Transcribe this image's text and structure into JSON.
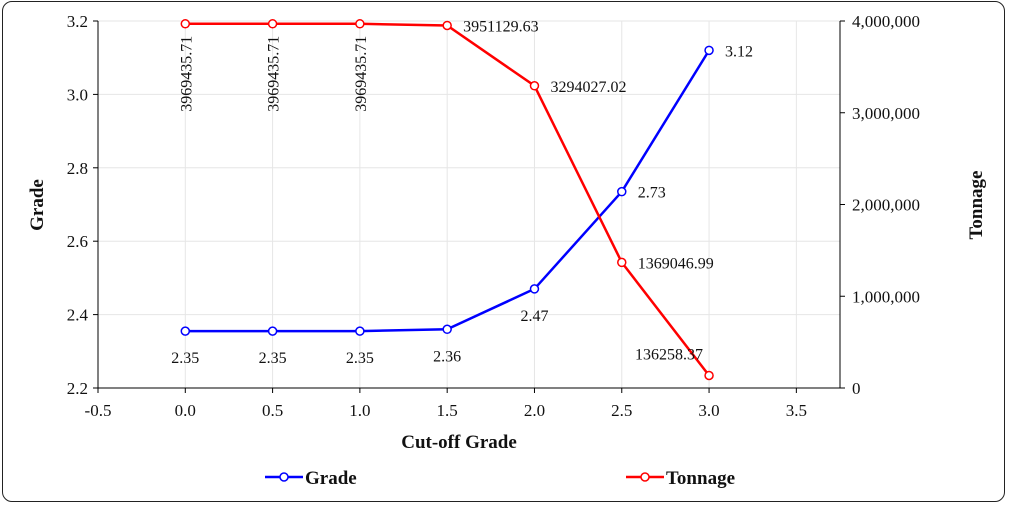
{
  "chart_data": {
    "type": "line",
    "xlabel": "Cut-off Grade",
    "ylabel": "Grade",
    "y2label": "Tonnage",
    "xlim": [
      -0.5,
      3.75
    ],
    "ylim": [
      2.2,
      3.2
    ],
    "y2lim": [
      0,
      4000000
    ],
    "x_ticks": [
      "-0.5",
      "0.0",
      "0.5",
      "1.0",
      "1.5",
      "2.0",
      "2.5",
      "3.0",
      "3.5"
    ],
    "y_ticks": [
      "2.2",
      "2.4",
      "2.6",
      "2.8",
      "3.0",
      "3.2"
    ],
    "y2_ticks": [
      "0",
      "1,000,000",
      "2,000,000",
      "3,000,000",
      "4,000,000"
    ],
    "grid": true,
    "legend_position": "bottom",
    "x": [
      0.0,
      0.5,
      1.0,
      1.5,
      2.0,
      2.5,
      3.0
    ],
    "series": [
      {
        "name": "Grade",
        "axis": "left",
        "color": "#0000ff",
        "values": [
          2.355,
          2.355,
          2.355,
          2.36,
          2.47,
          2.735,
          3.12
        ],
        "labels": [
          "2.35",
          "2.35",
          "2.35",
          "2.36",
          "2.47",
          "2.73",
          "3.12"
        ]
      },
      {
        "name": "Tonnage",
        "axis": "right",
        "color": "#ff0000",
        "values": [
          3969435.71,
          3969435.71,
          3969435.71,
          3951129.63,
          3294027.02,
          1369046.99,
          136258.37
        ],
        "labels": [
          "3969435.71",
          "3969435.71",
          "3969435.71",
          "3951129.63",
          "3294027.02",
          "1369046.99",
          "136258.37"
        ]
      }
    ]
  }
}
